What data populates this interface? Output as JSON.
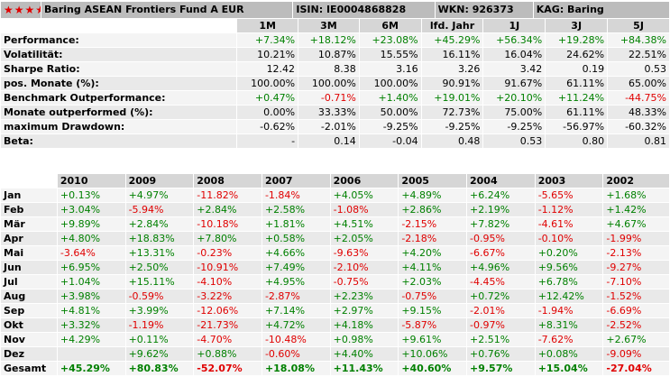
{
  "header": {
    "stars": "★★★★",
    "fund_name": "Baring ASEAN Frontiers Fund A EUR",
    "isin": "ISIN: IE0004868828",
    "wkn": "WKN: 926373",
    "kag": "KAG: Baring"
  },
  "perf": {
    "columns": [
      "1M",
      "3M",
      "6M",
      "lfd. Jahr",
      "1J",
      "3J",
      "5J"
    ],
    "rows": [
      {
        "label": "Performance:",
        "values": [
          "+7.34%",
          "+18.12%",
          "+23.08%",
          "+45.29%",
          "+56.34%",
          "+19.28%",
          "+84.38%"
        ],
        "colored": true
      },
      {
        "label": "Volatilität:",
        "values": [
          "10.21%",
          "10.87%",
          "15.55%",
          "16.11%",
          "16.04%",
          "24.62%",
          "22.51%"
        ],
        "colored": false
      },
      {
        "label": "Sharpe Ratio:",
        "values": [
          "12.42",
          "8.38",
          "3.16",
          "3.26",
          "3.42",
          "0.19",
          "0.53"
        ],
        "colored": false
      },
      {
        "label": "pos. Monate (%):",
        "values": [
          "100.00%",
          "100.00%",
          "100.00%",
          "90.91%",
          "91.67%",
          "61.11%",
          "65.00%"
        ],
        "colored": false
      },
      {
        "label": "Benchmark Outperformance:",
        "values": [
          "+0.47%",
          "-0.71%",
          "+1.40%",
          "+19.01%",
          "+20.10%",
          "+11.24%",
          "-44.75%"
        ],
        "colored": true
      },
      {
        "label": "Monate outperformed (%):",
        "values": [
          "0.00%",
          "33.33%",
          "50.00%",
          "72.73%",
          "75.00%",
          "61.11%",
          "48.33%"
        ],
        "colored": false
      },
      {
        "label": "maximum Drawdown:",
        "values": [
          "-0.62%",
          "-2.01%",
          "-9.25%",
          "-9.25%",
          "-9.25%",
          "-56.97%",
          "-60.32%"
        ],
        "colored": false
      },
      {
        "label": "Beta:",
        "values": [
          "-",
          "0.14",
          "-0.04",
          "0.48",
          "0.53",
          "0.80",
          "0.81"
        ],
        "colored": false
      }
    ]
  },
  "monthly": {
    "years": [
      "2010",
      "2009",
      "2008",
      "2007",
      "2006",
      "2005",
      "2004",
      "2003",
      "2002"
    ],
    "rows": [
      {
        "label": "Jan",
        "values": [
          "+0.13%",
          "+4.97%",
          "-11.82%",
          "-1.84%",
          "+4.05%",
          "+4.89%",
          "+6.24%",
          "-5.65%",
          "+1.68%"
        ]
      },
      {
        "label": "Feb",
        "values": [
          "+3.04%",
          "-5.94%",
          "+2.84%",
          "+2.58%",
          "-1.08%",
          "+2.86%",
          "+2.19%",
          "-1.12%",
          "+1.42%"
        ]
      },
      {
        "label": "Mär",
        "values": [
          "+9.89%",
          "+2.84%",
          "-10.18%",
          "+1.81%",
          "+4.51%",
          "-2.15%",
          "+7.82%",
          "-4.61%",
          "+4.67%"
        ]
      },
      {
        "label": "Apr",
        "values": [
          "+4.80%",
          "+18.83%",
          "+7.80%",
          "+0.58%",
          "+2.05%",
          "-2.18%",
          "-0.95%",
          "-0.10%",
          "-1.99%"
        ]
      },
      {
        "label": "Mai",
        "values": [
          "-3.64%",
          "+13.31%",
          "-0.23%",
          "+4.66%",
          "-9.63%",
          "+4.20%",
          "-6.67%",
          "+0.20%",
          "-2.13%"
        ]
      },
      {
        "label": "Jun",
        "values": [
          "+6.95%",
          "+2.50%",
          "-10.91%",
          "+7.49%",
          "-2.10%",
          "+4.11%",
          "+4.96%",
          "+9.56%",
          "-9.27%"
        ]
      },
      {
        "label": "Jul",
        "values": [
          "+1.04%",
          "+15.11%",
          "-4.10%",
          "+4.95%",
          "-0.75%",
          "+2.03%",
          "-4.45%",
          "+6.78%",
          "-7.10%"
        ]
      },
      {
        "label": "Aug",
        "values": [
          "+3.98%",
          "-0.59%",
          "-3.22%",
          "-2.87%",
          "+2.23%",
          "-0.75%",
          "+0.72%",
          "+12.42%",
          "-1.52%"
        ]
      },
      {
        "label": "Sep",
        "values": [
          "+4.81%",
          "+3.99%",
          "-12.06%",
          "+7.14%",
          "+2.97%",
          "+9.15%",
          "-2.01%",
          "-1.94%",
          "-6.69%"
        ]
      },
      {
        "label": "Okt",
        "values": [
          "+3.32%",
          "-1.19%",
          "-21.73%",
          "+4.72%",
          "+4.18%",
          "-5.87%",
          "-0.97%",
          "+8.31%",
          "-2.52%"
        ]
      },
      {
        "label": "Nov",
        "values": [
          "+4.29%",
          "+0.11%",
          "-4.70%",
          "-10.48%",
          "+0.98%",
          "+9.61%",
          "+2.51%",
          "-7.62%",
          "+2.67%"
        ]
      },
      {
        "label": "Dez",
        "values": [
          "",
          "+9.62%",
          "+0.88%",
          "-0.60%",
          "+4.40%",
          "+10.06%",
          "+0.76%",
          "+0.08%",
          "-9.09%"
        ]
      },
      {
        "label": "Gesamt",
        "values": [
          "+45.29%",
          "+80.83%",
          "-52.07%",
          "+18.08%",
          "+11.43%",
          "+40.60%",
          "+9.57%",
          "+15.04%",
          "-27.04%"
        ],
        "total": true
      }
    ]
  },
  "colors": {
    "positive": "#008000",
    "negative": "#e00000",
    "stars": "#e00000",
    "header_bg": "#bcbcbc"
  }
}
